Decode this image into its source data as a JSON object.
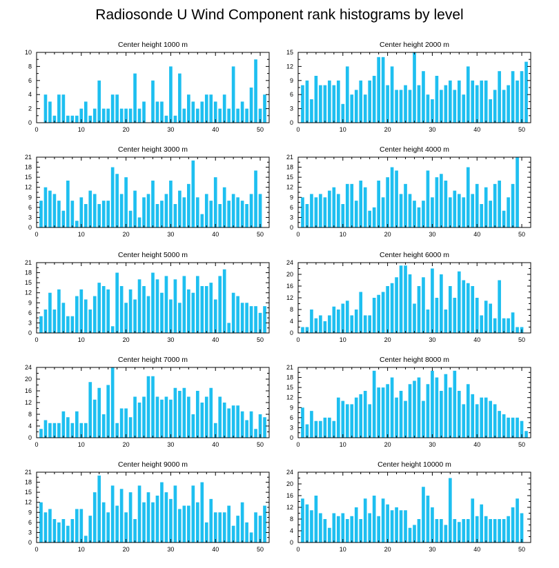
{
  "title": "Radiosonde U Wind Component rank histograms by level",
  "bar_color": "#1ebff0",
  "chart_data": [
    {
      "type": "bar",
      "title": "Center height 1000 m",
      "xlabel": "",
      "ylabel": "",
      "xlim": [
        0,
        52
      ],
      "ylim": [
        0,
        10
      ],
      "xticks": [
        0,
        10,
        20,
        30,
        40,
        50
      ],
      "yticks": [
        0,
        2,
        4,
        6,
        8,
        10
      ],
      "categories": [
        1,
        2,
        3,
        4,
        5,
        6,
        7,
        8,
        9,
        10,
        11,
        12,
        13,
        14,
        15,
        16,
        17,
        18,
        19,
        20,
        21,
        22,
        23,
        24,
        25,
        26,
        27,
        28,
        29,
        30,
        31,
        32,
        33,
        34,
        35,
        36,
        37,
        38,
        39,
        40,
        41,
        42,
        43,
        44,
        45,
        46,
        47,
        48,
        49,
        50,
        51
      ],
      "values": [
        0,
        4,
        3,
        1,
        4,
        4,
        1,
        1,
        1,
        2,
        3,
        1,
        2,
        6,
        2,
        2,
        4,
        4,
        2,
        2,
        2,
        7,
        2,
        3,
        0,
        6,
        3,
        3,
        1,
        8,
        1,
        7,
        2,
        4,
        3,
        2,
        3,
        4,
        4,
        3,
        2,
        4,
        2,
        8,
        2,
        3,
        2,
        5,
        9,
        2,
        4
      ]
    },
    {
      "type": "bar",
      "title": "Center height 2000 m",
      "xlabel": "",
      "ylabel": "",
      "xlim": [
        0,
        52
      ],
      "ylim": [
        0,
        15
      ],
      "xticks": [
        0,
        10,
        20,
        30,
        40,
        50
      ],
      "yticks": [
        0,
        3,
        6,
        9,
        12,
        15
      ],
      "categories": [
        1,
        2,
        3,
        4,
        5,
        6,
        7,
        8,
        9,
        10,
        11,
        12,
        13,
        14,
        15,
        16,
        17,
        18,
        19,
        20,
        21,
        22,
        23,
        24,
        25,
        26,
        27,
        28,
        29,
        30,
        31,
        32,
        33,
        34,
        35,
        36,
        37,
        38,
        39,
        40,
        41,
        42,
        43,
        44,
        45,
        46,
        47,
        48,
        49,
        50,
        51
      ],
      "values": [
        8,
        9,
        5,
        10,
        8,
        8,
        9,
        8,
        9,
        4,
        12,
        6,
        7,
        9,
        6,
        9,
        10,
        14,
        14,
        8,
        12,
        7,
        7,
        8,
        7,
        15,
        8,
        11,
        6,
        5,
        10,
        7,
        8,
        9,
        7,
        9,
        6,
        12,
        9,
        8,
        9,
        9,
        5,
        7,
        11,
        7,
        8,
        11,
        9,
        11,
        13
      ]
    },
    {
      "type": "bar",
      "title": "Center height 3000 m",
      "xlabel": "",
      "ylabel": "",
      "xlim": [
        0,
        52
      ],
      "ylim": [
        0,
        21
      ],
      "xticks": [
        0,
        10,
        20,
        30,
        40,
        50
      ],
      "yticks": [
        0,
        3,
        6,
        9,
        12,
        15,
        18,
        21
      ],
      "categories": [
        1,
        2,
        3,
        4,
        5,
        6,
        7,
        8,
        9,
        10,
        11,
        12,
        13,
        14,
        15,
        16,
        17,
        18,
        19,
        20,
        21,
        22,
        23,
        24,
        25,
        26,
        27,
        28,
        29,
        30,
        31,
        32,
        33,
        34,
        35,
        36,
        37,
        38,
        39,
        40,
        41,
        42,
        43,
        44,
        45,
        46,
        47,
        48,
        49,
        50,
        51
      ],
      "values": [
        8,
        12,
        11,
        10,
        8,
        5,
        14,
        8,
        2,
        9,
        7,
        11,
        10,
        7,
        8,
        8,
        18,
        16,
        10,
        15,
        5,
        11,
        3,
        9,
        10,
        14,
        7,
        8,
        10,
        14,
        7,
        11,
        9,
        13,
        20,
        9,
        4,
        10,
        8,
        15,
        7,
        12,
        8,
        10,
        9,
        8,
        7,
        10,
        17,
        10,
        0
      ]
    },
    {
      "type": "bar",
      "title": "Center height 4000 m",
      "xlabel": "",
      "ylabel": "",
      "xlim": [
        0,
        52
      ],
      "ylim": [
        0,
        21
      ],
      "xticks": [
        0,
        10,
        20,
        30,
        40,
        50
      ],
      "yticks": [
        0,
        3,
        6,
        9,
        12,
        15,
        18,
        21
      ],
      "categories": [
        1,
        2,
        3,
        4,
        5,
        6,
        7,
        8,
        9,
        10,
        11,
        12,
        13,
        14,
        15,
        16,
        17,
        18,
        19,
        20,
        21,
        22,
        23,
        24,
        25,
        26,
        27,
        28,
        29,
        30,
        31,
        32,
        33,
        34,
        35,
        36,
        37,
        38,
        39,
        40,
        41,
        42,
        43,
        44,
        45,
        46,
        47,
        48,
        49,
        50,
        51
      ],
      "values": [
        9,
        7,
        10,
        9,
        10,
        9,
        11,
        12,
        10,
        7,
        13,
        13,
        8,
        14,
        12,
        5,
        6,
        14,
        9,
        15,
        18,
        17,
        10,
        13,
        10,
        8,
        6,
        8,
        17,
        9,
        15,
        16,
        14,
        9,
        11,
        10,
        9,
        18,
        10,
        13,
        7,
        12,
        8,
        13,
        14,
        5,
        9,
        13,
        21,
        0,
        0
      ]
    },
    {
      "type": "bar",
      "title": "Center height 5000 m",
      "xlabel": "",
      "ylabel": "",
      "xlim": [
        0,
        52
      ],
      "ylim": [
        0,
        21
      ],
      "xticks": [
        0,
        10,
        20,
        30,
        40,
        50
      ],
      "yticks": [
        0,
        3,
        6,
        9,
        12,
        15,
        18,
        21
      ],
      "categories": [
        1,
        2,
        3,
        4,
        5,
        6,
        7,
        8,
        9,
        10,
        11,
        12,
        13,
        14,
        15,
        16,
        17,
        18,
        19,
        20,
        21,
        22,
        23,
        24,
        25,
        26,
        27,
        28,
        29,
        30,
        31,
        32,
        33,
        34,
        35,
        36,
        37,
        38,
        39,
        40,
        41,
        42,
        43,
        44,
        45,
        46,
        47,
        48,
        49,
        50,
        51
      ],
      "values": [
        5,
        7,
        12,
        7,
        13,
        9,
        5,
        5,
        11,
        13,
        10,
        7,
        11,
        15,
        14,
        13,
        2,
        18,
        14,
        9,
        13,
        10,
        16,
        14,
        11,
        18,
        16,
        12,
        17,
        10,
        16,
        9,
        17,
        13,
        12,
        17,
        14,
        14,
        15,
        10,
        17,
        19,
        3,
        12,
        11,
        9,
        9,
        8,
        8,
        6,
        8
      ]
    },
    {
      "type": "bar",
      "title": "Center height 6000 m",
      "xlabel": "",
      "ylabel": "",
      "xlim": [
        0,
        52
      ],
      "ylim": [
        0,
        24
      ],
      "xticks": [
        0,
        10,
        20,
        30,
        40,
        50
      ],
      "yticks": [
        0,
        4,
        8,
        12,
        16,
        20,
        24
      ],
      "categories": [
        1,
        2,
        3,
        4,
        5,
        6,
        7,
        8,
        9,
        10,
        11,
        12,
        13,
        14,
        15,
        16,
        17,
        18,
        19,
        20,
        21,
        22,
        23,
        24,
        25,
        26,
        27,
        28,
        29,
        30,
        31,
        32,
        33,
        34,
        35,
        36,
        37,
        38,
        39,
        40,
        41,
        42,
        43,
        44,
        45,
        46,
        47,
        48,
        49,
        50,
        51
      ],
      "values": [
        2,
        2,
        8,
        5,
        6,
        4,
        6,
        9,
        8,
        10,
        11,
        6,
        8,
        14,
        6,
        6,
        12,
        13,
        14,
        16,
        17,
        19,
        23,
        23,
        20,
        10,
        16,
        19,
        8,
        22,
        12,
        20,
        8,
        16,
        12,
        21,
        18,
        17,
        16,
        12,
        6,
        11,
        10,
        5,
        18,
        5,
        5,
        7,
        2,
        2,
        0
      ]
    },
    {
      "type": "bar",
      "title": "Center height 7000 m",
      "xlabel": "",
      "ylabel": "",
      "xlim": [
        0,
        52
      ],
      "ylim": [
        0,
        24
      ],
      "xticks": [
        0,
        10,
        20,
        30,
        40,
        50
      ],
      "yticks": [
        0,
        4,
        8,
        12,
        16,
        20,
        24
      ],
      "categories": [
        1,
        2,
        3,
        4,
        5,
        6,
        7,
        8,
        9,
        10,
        11,
        12,
        13,
        14,
        15,
        16,
        17,
        18,
        19,
        20,
        21,
        22,
        23,
        24,
        25,
        26,
        27,
        28,
        29,
        30,
        31,
        32,
        33,
        34,
        35,
        36,
        37,
        38,
        39,
        40,
        41,
        42,
        43,
        44,
        45,
        46,
        47,
        48,
        49,
        50,
        51
      ],
      "values": [
        3,
        6,
        5,
        5,
        5,
        9,
        7,
        5,
        9,
        5,
        5,
        19,
        13,
        17,
        8,
        18,
        24,
        5,
        10,
        10,
        7,
        14,
        12,
        14,
        21,
        21,
        14,
        13,
        14,
        13,
        17,
        16,
        17,
        14,
        8,
        16,
        12,
        14,
        17,
        5,
        14,
        12,
        10,
        11,
        11,
        9,
        6,
        9,
        3,
        8,
        7
      ]
    },
    {
      "type": "bar",
      "title": "Center height 8000 m",
      "xlabel": "",
      "ylabel": "",
      "xlim": [
        0,
        52
      ],
      "ylim": [
        0,
        21
      ],
      "xticks": [
        0,
        10,
        20,
        30,
        40,
        50
      ],
      "yticks": [
        0,
        3,
        6,
        9,
        12,
        15,
        18,
        21
      ],
      "categories": [
        1,
        2,
        3,
        4,
        5,
        6,
        7,
        8,
        9,
        10,
        11,
        12,
        13,
        14,
        15,
        16,
        17,
        18,
        19,
        20,
        21,
        22,
        23,
        24,
        25,
        26,
        27,
        28,
        29,
        30,
        31,
        32,
        33,
        34,
        35,
        36,
        37,
        38,
        39,
        40,
        41,
        42,
        43,
        44,
        45,
        46,
        47,
        48,
        49,
        50,
        51
      ],
      "values": [
        9,
        4,
        8,
        5,
        5,
        6,
        6,
        5,
        12,
        11,
        10,
        10,
        12,
        13,
        14,
        10,
        20,
        15,
        15,
        16,
        18,
        12,
        14,
        11,
        16,
        17,
        18,
        11,
        16,
        20,
        18,
        14,
        19,
        15,
        20,
        14,
        10,
        16,
        13,
        10,
        12,
        12,
        11,
        10,
        8,
        7,
        6,
        6,
        6,
        5,
        2
      ]
    },
    {
      "type": "bar",
      "title": "Center height 9000 m",
      "xlabel": "",
      "ylabel": "",
      "xlim": [
        0,
        52
      ],
      "ylim": [
        0,
        21
      ],
      "xticks": [
        0,
        10,
        20,
        30,
        40,
        50
      ],
      "yticks": [
        0,
        3,
        6,
        9,
        12,
        15,
        18,
        21
      ],
      "categories": [
        1,
        2,
        3,
        4,
        5,
        6,
        7,
        8,
        9,
        10,
        11,
        12,
        13,
        14,
        15,
        16,
        17,
        18,
        19,
        20,
        21,
        22,
        23,
        24,
        25,
        26,
        27,
        28,
        29,
        30,
        31,
        32,
        33,
        34,
        35,
        36,
        37,
        38,
        39,
        40,
        41,
        42,
        43,
        44,
        45,
        46,
        47,
        48,
        49,
        50,
        51
      ],
      "values": [
        12,
        9,
        10,
        7,
        6,
        7,
        5,
        7,
        10,
        10,
        2,
        8,
        15,
        20,
        12,
        9,
        17,
        11,
        16,
        9,
        15,
        7,
        17,
        12,
        15,
        12,
        14,
        18,
        15,
        13,
        17,
        10,
        11,
        11,
        17,
        12,
        18,
        6,
        13,
        9,
        9,
        9,
        11,
        5,
        8,
        12,
        6,
        3,
        9,
        8,
        11
      ]
    },
    {
      "type": "bar",
      "title": "Center height 10000 m",
      "xlabel": "",
      "ylabel": "",
      "xlim": [
        0,
        52
      ],
      "ylim": [
        0,
        24
      ],
      "xticks": [
        0,
        10,
        20,
        30,
        40,
        50
      ],
      "yticks": [
        0,
        4,
        8,
        12,
        16,
        20,
        24
      ],
      "categories": [
        1,
        2,
        3,
        4,
        5,
        6,
        7,
        8,
        9,
        10,
        11,
        12,
        13,
        14,
        15,
        16,
        17,
        18,
        19,
        20,
        21,
        22,
        23,
        24,
        25,
        26,
        27,
        28,
        29,
        30,
        31,
        32,
        33,
        34,
        35,
        36,
        37,
        38,
        39,
        40,
        41,
        42,
        43,
        44,
        45,
        46,
        47,
        48,
        49,
        50,
        51
      ],
      "values": [
        15,
        13,
        11,
        16,
        10,
        8,
        5,
        10,
        9,
        10,
        8,
        9,
        12,
        8,
        15,
        10,
        16,
        9,
        15,
        13,
        11,
        12,
        11,
        11,
        5,
        6,
        8,
        19,
        16,
        12,
        8,
        8,
        6,
        22,
        8,
        7,
        8,
        8,
        15,
        9,
        13,
        9,
        8,
        8,
        8,
        8,
        9,
        12,
        15,
        10,
        0
      ]
    }
  ]
}
